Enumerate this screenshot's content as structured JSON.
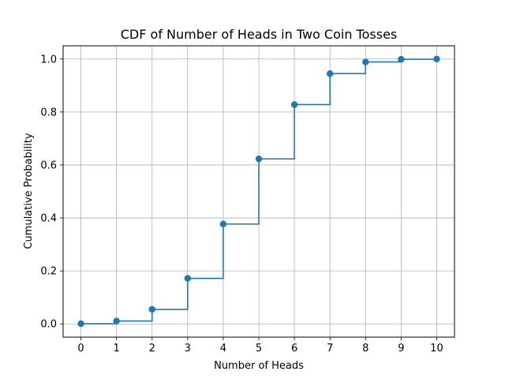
{
  "chart_data": {
    "type": "line",
    "title": "CDF of Number of Heads in Two Coin Tosses",
    "xlabel": "Number of Heads",
    "ylabel": "Cumulative Probability",
    "x": [
      0,
      1,
      2,
      3,
      4,
      5,
      6,
      7,
      8,
      9,
      10
    ],
    "y": [
      0.001,
      0.011,
      0.055,
      0.172,
      0.377,
      0.623,
      0.828,
      0.945,
      0.989,
      0.999,
      1.0
    ],
    "step": "post",
    "markers": true,
    "color": "#1f77b4",
    "grid": true,
    "xlim": [
      -0.5,
      10.5
    ],
    "ylim": [
      -0.05,
      1.05
    ],
    "xticks": [
      "0",
      "1",
      "2",
      "3",
      "4",
      "5",
      "6",
      "7",
      "8",
      "9",
      "10"
    ],
    "yticks": [
      "0.0",
      "0.2",
      "0.4",
      "0.6",
      "0.8",
      "1.0"
    ]
  }
}
